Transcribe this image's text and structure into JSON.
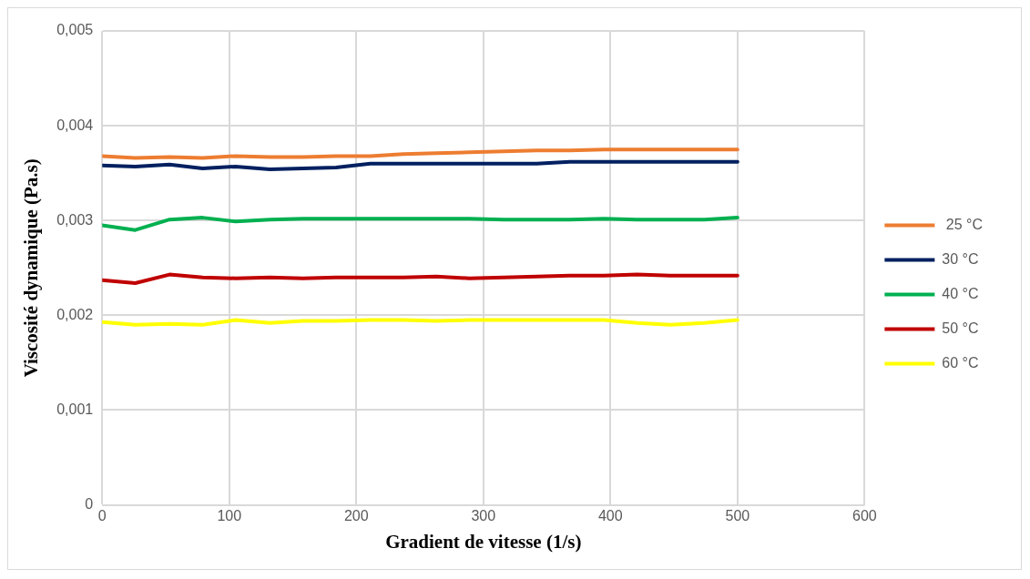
{
  "chart_data": {
    "type": "line",
    "xlabel": "Gradient de vitesse (1/s)",
    "ylabel": "Viscosité dynamique (Pa.s)",
    "x": [
      0,
      26,
      53,
      79,
      105,
      132,
      158,
      184,
      211,
      237,
      263,
      289,
      316,
      342,
      368,
      395,
      421,
      447,
      474,
      500
    ],
    "series": [
      {
        "name": " 25 °C",
        "color": "#ed7d31",
        "values": [
          0.00368,
          0.00366,
          0.00367,
          0.00366,
          0.00368,
          0.00367,
          0.00367,
          0.00368,
          0.00368,
          0.0037,
          0.00371,
          0.00372,
          0.00373,
          0.00374,
          0.00374,
          0.00375,
          0.00375,
          0.00375,
          0.00375,
          0.00375
        ]
      },
      {
        "name": "30 °C",
        "color": "#002060",
        "values": [
          0.00358,
          0.00357,
          0.00359,
          0.00355,
          0.00357,
          0.00354,
          0.00355,
          0.00356,
          0.0036,
          0.0036,
          0.0036,
          0.0036,
          0.0036,
          0.0036,
          0.00362,
          0.00362,
          0.00362,
          0.00362,
          0.00362,
          0.00362
        ]
      },
      {
        "name": "40 °C",
        "color": "#00b050",
        "values": [
          0.00295,
          0.0029,
          0.00301,
          0.00303,
          0.00299,
          0.00301,
          0.00302,
          0.00302,
          0.00302,
          0.00302,
          0.00302,
          0.00302,
          0.00301,
          0.00301,
          0.00301,
          0.00302,
          0.00301,
          0.00301,
          0.00301,
          0.00303
        ]
      },
      {
        "name": "50 °C",
        "color": "#c00000",
        "values": [
          0.00237,
          0.00234,
          0.00243,
          0.0024,
          0.00239,
          0.0024,
          0.00239,
          0.0024,
          0.0024,
          0.0024,
          0.00241,
          0.00239,
          0.0024,
          0.00241,
          0.00242,
          0.00242,
          0.00243,
          0.00242,
          0.00242,
          0.00242
        ]
      },
      {
        "name": "60 °C",
        "color": "#ffff00",
        "values": [
          0.00193,
          0.0019,
          0.00191,
          0.0019,
          0.00195,
          0.00192,
          0.00194,
          0.00194,
          0.00195,
          0.00195,
          0.00194,
          0.00195,
          0.00195,
          0.00195,
          0.00195,
          0.00195,
          0.00192,
          0.0019,
          0.00192,
          0.00195
        ]
      }
    ],
    "xlim": [
      0,
      600
    ],
    "xticks": [
      0,
      100,
      200,
      300,
      400,
      500,
      600
    ],
    "ylim": [
      0,
      0.005
    ],
    "yticks": [
      {
        "value": 0,
        "label": "0"
      },
      {
        "value": 0.001,
        "label": "0,001"
      },
      {
        "value": 0.002,
        "label": "0,002"
      },
      {
        "value": 0.003,
        "label": "0,003"
      },
      {
        "value": 0.004,
        "label": "0,004"
      },
      {
        "value": 0.005,
        "label": "0,005"
      }
    ],
    "grid": true,
    "legend": "right",
    "marker": "none",
    "line_style": "solid"
  }
}
